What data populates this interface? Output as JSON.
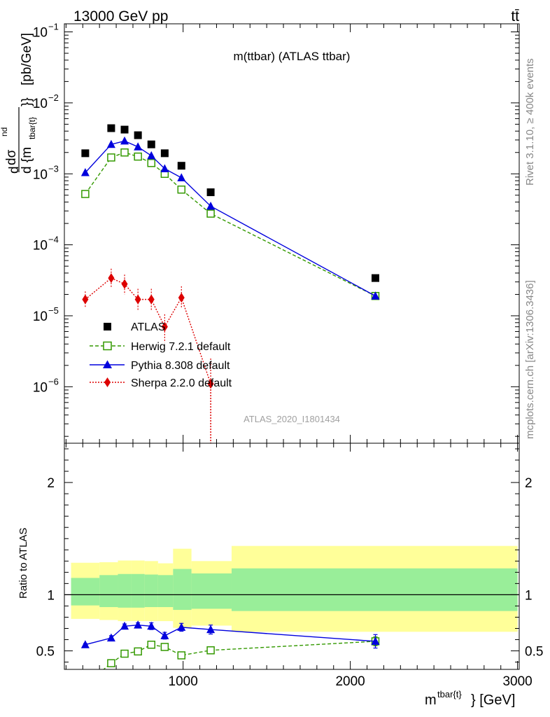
{
  "header": {
    "energy_label": "13000 GeV pp",
    "process_label": "tt̄"
  },
  "side_labels": {
    "rivet": "Rivet 3.1.10, ≥ 400k events",
    "mcplots": "mcplots.cern.ch [arXiv:1306.3436]"
  },
  "chart_data": [
    {
      "type": "scatter",
      "panel": "main",
      "title": "m(ttbar) (ATLAS ttbar)",
      "ylabel_parts": {
        "d1": "d",
        "num": "dσ",
        "num_sup": "nd",
        "den": "d {m",
        "den_sub": "tbar{t}",
        "den_end": "}}",
        "unit": "[pb/GeV]"
      },
      "yscale": "log",
      "ylim": [
        1.6e-07,
        0.13
      ],
      "xlim": [
        290,
        3010
      ],
      "y_ticks": [
        {
          "v": 1e-06,
          "base": "10",
          "exp": "−6"
        },
        {
          "v": 1e-05,
          "base": "10",
          "exp": "−5"
        },
        {
          "v": 0.0001,
          "base": "10",
          "exp": "−4"
        },
        {
          "v": 0.001,
          "base": "10",
          "exp": "−3"
        },
        {
          "v": 0.01,
          "base": "10",
          "exp": "−2"
        },
        {
          "v": 0.1,
          "base": "10",
          "exp": "−1"
        }
      ],
      "legend_position": "middle-left",
      "watermark": "ATLAS_2020_I1801434",
      "series": [
        {
          "name": "ATLAS",
          "color": "#000000",
          "marker": "square-filled",
          "line": "none",
          "x": [
            415,
            570,
            650,
            730,
            810,
            890,
            990,
            1165,
            2150
          ],
          "y": [
            0.00195,
            0.0044,
            0.0042,
            0.0035,
            0.0026,
            0.00195,
            0.0013,
            0.00055,
            3.4e-05
          ]
        },
        {
          "name": "Herwig 7.2.1 default",
          "color": "#339900",
          "marker": "square-open",
          "line": "dashed",
          "x": [
            415,
            570,
            650,
            730,
            810,
            890,
            990,
            1165,
            2150
          ],
          "y": [
            0.00052,
            0.0017,
            0.002,
            0.00175,
            0.00142,
            0.001,
            0.0006,
            0.000275,
            1.9e-05
          ],
          "yerr": [
            0,
            0.0001,
            0.00013,
            0.0001,
            8e-05,
            6e-05,
            4e-05,
            2e-05,
            1.5e-06
          ]
        },
        {
          "name": "Pythia 8.308 default",
          "color": "#0000dd",
          "marker": "triangle-filled",
          "line": "solid",
          "x": [
            415,
            570,
            650,
            730,
            810,
            890,
            990,
            1165,
            2150
          ],
          "y": [
            0.00104,
            0.0026,
            0.0029,
            0.0024,
            0.0018,
            0.00118,
            0.00088,
            0.00035,
            1.9e-05
          ],
          "yerr": [
            0,
            8e-05,
            9e-05,
            8e-05,
            6e-05,
            5e-05,
            4e-05,
            2e-05,
            1.5e-06
          ]
        },
        {
          "name": "Sherpa 2.2.0 default",
          "color": "#dd0000",
          "marker": "diamond-filled",
          "line": "dotted",
          "x": [
            415,
            570,
            650,
            730,
            810,
            890,
            990,
            1165
          ],
          "y": [
            1.7e-05,
            3.4e-05,
            2.8e-05,
            1.7e-05,
            1.7e-05,
            7e-06,
            1.8e-05,
            1.1e-06
          ],
          "ylo": [
            1.3e-05,
            2.5e-05,
            2e-05,
            1.2e-05,
            1.2e-05,
            4.2e-06,
            1.3e-05,
            1e-08
          ],
          "yhi": [
            2.2e-05,
            4.6e-05,
            3.8e-05,
            2.4e-05,
            2.4e-05,
            1.05e-05,
            2.6e-05,
            2.5e-06
          ]
        }
      ]
    },
    {
      "type": "scatter",
      "panel": "ratio",
      "ylabel": "Ratio to ATLAS",
      "xlabel_parts": {
        "base": "m",
        "sup": "tbar{t}",
        "end": "} [GeV]"
      },
      "xlim": [
        290,
        3010
      ],
      "ylim": [
        0.335,
        2.35
      ],
      "x_ticks": [
        1000,
        2000,
        3000
      ],
      "y_ticks": [
        0.5,
        1,
        2
      ],
      "reference_line": 1,
      "uncertainty_bands": [
        {
          "x0": 330,
          "x1": 500,
          "outer": [
            0.785,
            1.285
          ],
          "inner": [
            0.905,
            1.15
          ]
        },
        {
          "x0": 500,
          "x1": 610,
          "outer": [
            0.775,
            1.29
          ],
          "inner": [
            0.89,
            1.175
          ]
        },
        {
          "x0": 610,
          "x1": 690,
          "outer": [
            0.765,
            1.305
          ],
          "inner": [
            0.885,
            1.185
          ]
        },
        {
          "x0": 690,
          "x1": 770,
          "outer": [
            0.765,
            1.305
          ],
          "inner": [
            0.885,
            1.185
          ]
        },
        {
          "x0": 770,
          "x1": 850,
          "outer": [
            0.765,
            1.3
          ],
          "inner": [
            0.89,
            1.18
          ]
        },
        {
          "x0": 850,
          "x1": 940,
          "outer": [
            0.765,
            1.28
          ],
          "inner": [
            0.89,
            1.175
          ]
        },
        {
          "x0": 940,
          "x1": 1050,
          "outer": [
            0.705,
            1.41
          ],
          "inner": [
            0.865,
            1.23
          ]
        },
        {
          "x0": 1050,
          "x1": 1290,
          "outer": [
            0.725,
            1.3
          ],
          "inner": [
            0.875,
            1.19
          ]
        },
        {
          "x0": 1290,
          "x1": 3000,
          "outer": [
            0.67,
            1.435
          ],
          "inner": [
            0.855,
            1.235
          ]
        }
      ],
      "band_colors": {
        "outer": "#ffff99",
        "inner": "#99ee99"
      },
      "series": [
        {
          "name": "Herwig 7.2.1 default",
          "color": "#339900",
          "marker": "square-open",
          "line": "dashed",
          "x": [
            570,
            650,
            730,
            810,
            890,
            990,
            1165,
            2150
          ],
          "y": [
            0.39,
            0.475,
            0.495,
            0.555,
            0.535,
            0.46,
            0.505,
            0.585
          ],
          "yerr": [
            0.012,
            0.014,
            0.015,
            0.015,
            0.018,
            0.02,
            0.022,
            0.04
          ]
        },
        {
          "name": "Pythia 8.308 default",
          "color": "#0000dd",
          "marker": "triangle-filled",
          "line": "solid",
          "x": [
            415,
            570,
            650,
            730,
            810,
            890,
            990,
            1165,
            2150
          ],
          "y": [
            0.555,
            0.615,
            0.72,
            0.73,
            0.72,
            0.635,
            0.71,
            0.69,
            0.585
          ],
          "yerr": [
            0.01,
            0.02,
            0.02,
            0.02,
            0.03,
            0.03,
            0.035,
            0.04,
            0.06
          ]
        }
      ]
    }
  ]
}
